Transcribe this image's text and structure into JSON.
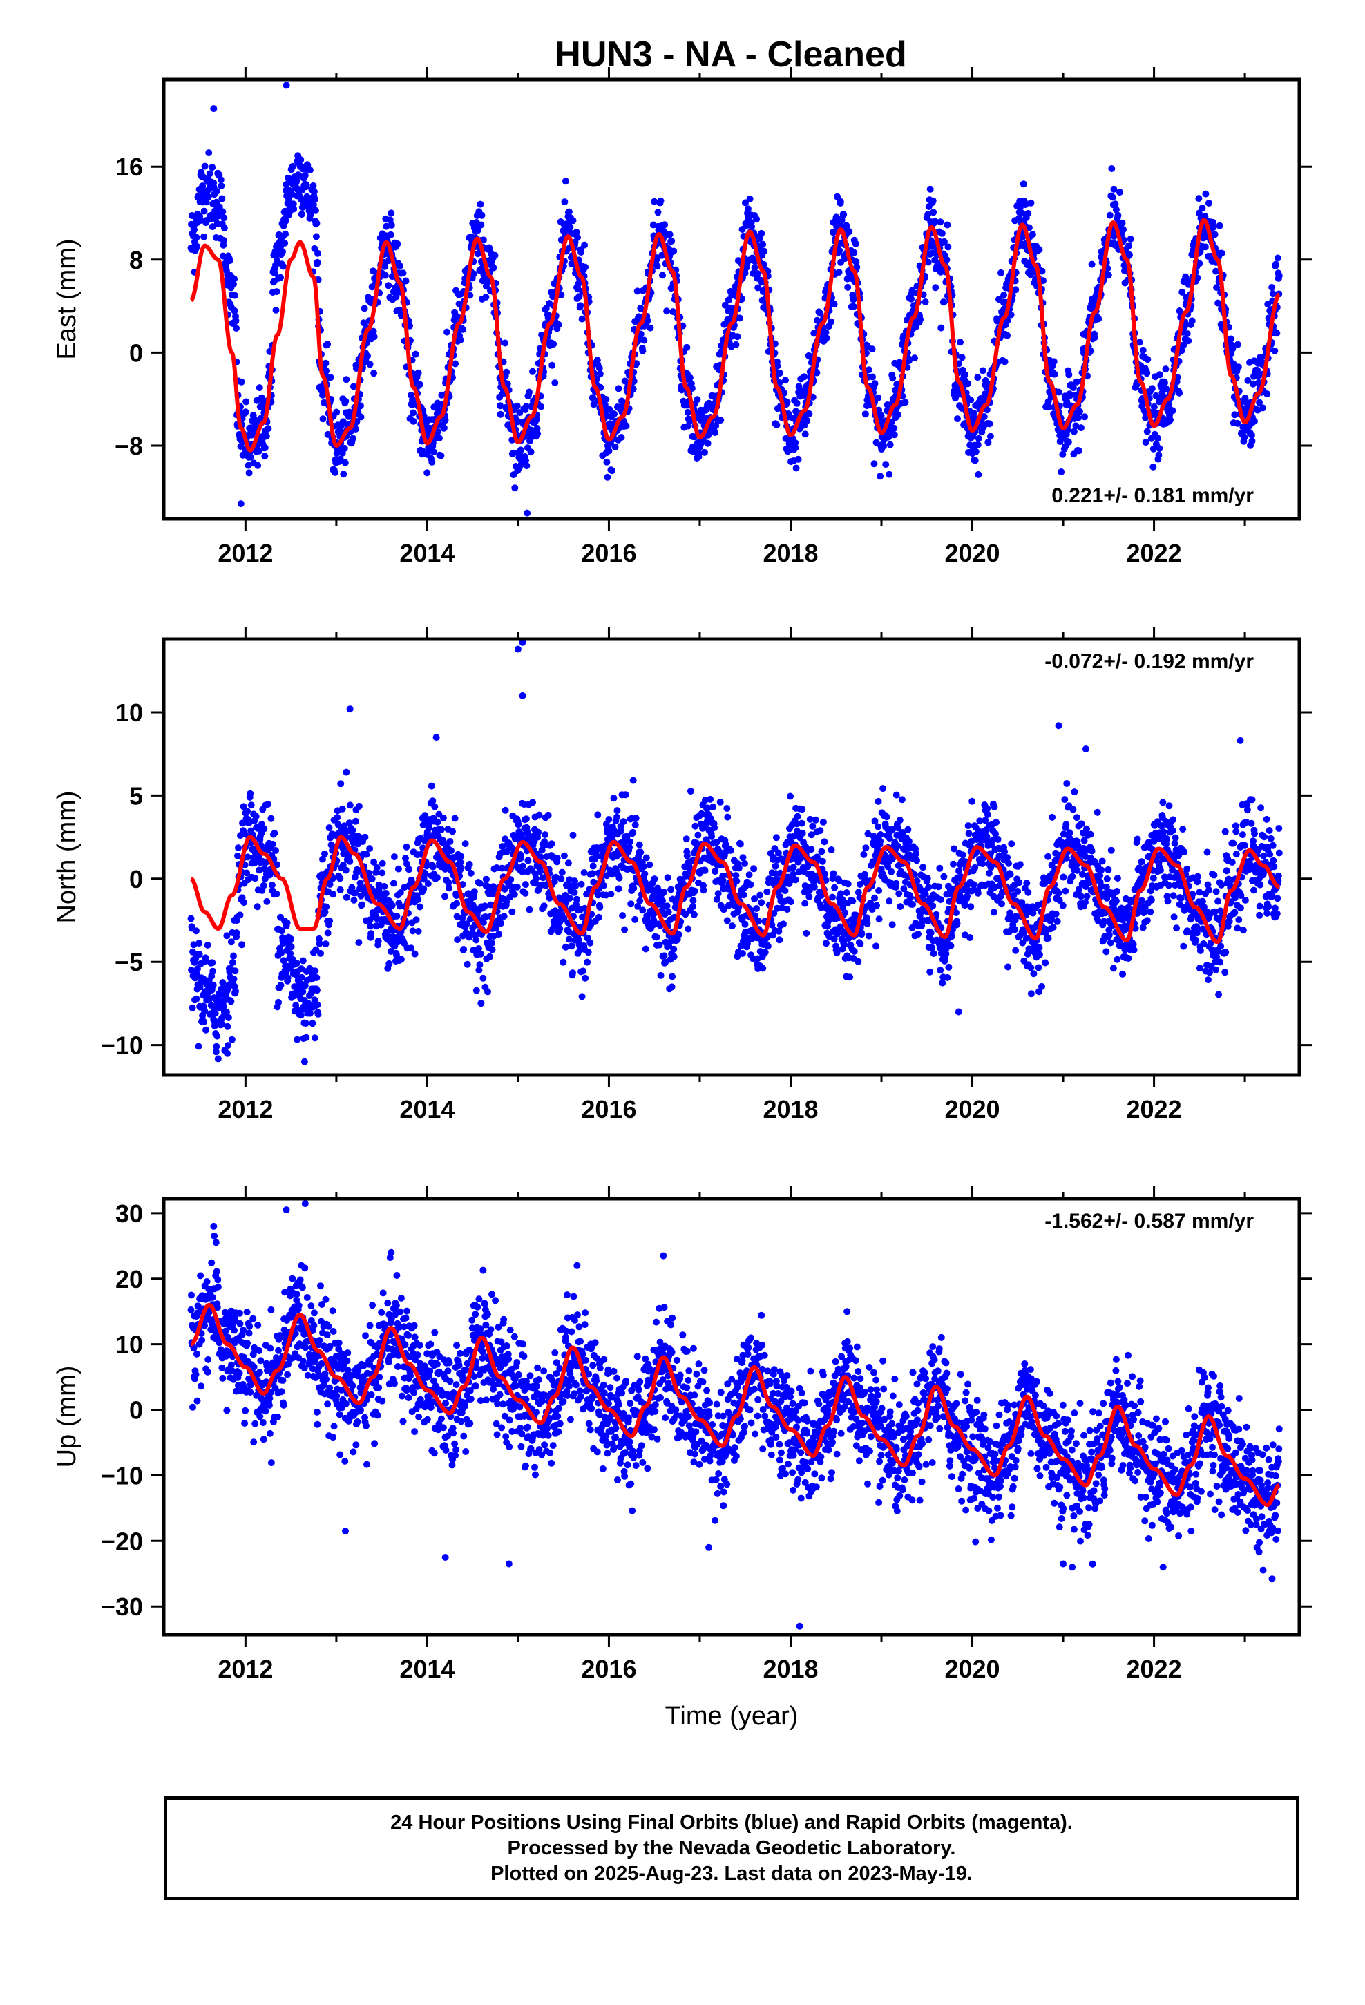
{
  "title": "HUN3  - NA - Cleaned",
  "colors": {
    "points": "#0000ff",
    "fit": "#ff0000",
    "frame": "#000000"
  },
  "footer": {
    "line1": "24 Hour Positions Using Final Orbits (blue) and Rapid Orbits (magenta).",
    "line2": "Processed by the Nevada Geodetic Laboratory.",
    "line3": "Plotted on 2025-Aug-23. Last data on 2023-May-19."
  },
  "chart_data": [
    {
      "type": "scatter",
      "ylabel": "East (mm)",
      "xlabel": "",
      "xlim": [
        2011.1,
        2023.6
      ],
      "ylim": [
        -14.3,
        23.5
      ],
      "xticks": [
        2012,
        2014,
        2016,
        2018,
        2020,
        2022
      ],
      "yticks": [
        -8,
        0,
        8,
        16
      ],
      "ytick_labels": [
        "−8",
        "0",
        "8",
        "16"
      ],
      "rate": "0.221+/- 0.181 mm/yr",
      "rate_position": "bottom-right",
      "grid": false,
      "data_span": [
        2011.4,
        2023.38
      ],
      "fit": [
        [
          2011.4,
          4.5
        ],
        [
          2011.55,
          9.2
        ],
        [
          2011.7,
          8.0
        ],
        [
          2011.85,
          0.0
        ],
        [
          2011.95,
          -6.5
        ],
        [
          2012.05,
          -8.4
        ],
        [
          2012.2,
          -6.0
        ],
        [
          2012.35,
          1.5
        ],
        [
          2012.5,
          8.0
        ],
        [
          2012.6,
          9.5
        ],
        [
          2012.75,
          6.5
        ],
        [
          2012.85,
          -2.0
        ],
        [
          2013.0,
          -8.0
        ],
        [
          2013.15,
          -6.5
        ],
        [
          2013.35,
          2.0
        ],
        [
          2013.55,
          9.5
        ],
        [
          2013.7,
          6.0
        ],
        [
          2013.85,
          -3.0
        ],
        [
          2014.0,
          -7.8
        ],
        [
          2014.15,
          -5.5
        ],
        [
          2014.35,
          2.5
        ],
        [
          2014.55,
          9.8
        ],
        [
          2014.7,
          6.5
        ],
        [
          2014.85,
          -3.0
        ],
        [
          2015.0,
          -7.7
        ],
        [
          2015.15,
          -5.5
        ],
        [
          2015.35,
          2.5
        ],
        [
          2015.55,
          10.0
        ],
        [
          2015.7,
          6.5
        ],
        [
          2015.85,
          -3.0
        ],
        [
          2016.0,
          -7.5
        ],
        [
          2016.15,
          -5.5
        ],
        [
          2016.35,
          2.5
        ],
        [
          2016.55,
          10.2
        ],
        [
          2016.7,
          7.0
        ],
        [
          2016.85,
          -3.0
        ],
        [
          2017.0,
          -7.3
        ],
        [
          2017.15,
          -5.5
        ],
        [
          2017.35,
          2.5
        ],
        [
          2017.55,
          10.4
        ],
        [
          2017.7,
          7.0
        ],
        [
          2017.85,
          -3.0
        ],
        [
          2018.0,
          -7.1
        ],
        [
          2018.15,
          -5.0
        ],
        [
          2018.35,
          2.5
        ],
        [
          2018.55,
          10.6
        ],
        [
          2018.7,
          7.0
        ],
        [
          2018.85,
          -3.0
        ],
        [
          2019.0,
          -6.9
        ],
        [
          2019.15,
          -4.5
        ],
        [
          2019.35,
          3.0
        ],
        [
          2019.55,
          10.8
        ],
        [
          2019.7,
          7.5
        ],
        [
          2019.85,
          -2.5
        ],
        [
          2020.0,
          -6.7
        ],
        [
          2020.15,
          -4.5
        ],
        [
          2020.35,
          3.0
        ],
        [
          2020.55,
          11.0
        ],
        [
          2020.7,
          7.5
        ],
        [
          2020.85,
          -2.5
        ],
        [
          2021.0,
          -6.5
        ],
        [
          2021.15,
          -4.5
        ],
        [
          2021.35,
          3.5
        ],
        [
          2021.55,
          11.2
        ],
        [
          2021.7,
          8.0
        ],
        [
          2021.85,
          -2.5
        ],
        [
          2022.0,
          -6.3
        ],
        [
          2022.15,
          -4.0
        ],
        [
          2022.35,
          3.5
        ],
        [
          2022.55,
          11.4
        ],
        [
          2022.7,
          8.0
        ],
        [
          2022.85,
          -2.0
        ],
        [
          2023.0,
          -6.0
        ],
        [
          2023.15,
          -3.5
        ],
        [
          2023.38,
          5.0
        ]
      ],
      "outliers": [
        [
          2012.45,
          23.0
        ],
        [
          2011.65,
          21.0
        ],
        [
          2011.95,
          -13.0
        ],
        [
          2015.1,
          -13.8
        ],
        [
          2014.95,
          -10.5
        ],
        [
          2016.5,
          13.0
        ],
        [
          2018.55,
          13.0
        ]
      ]
    },
    {
      "type": "scatter",
      "ylabel": "North (mm)",
      "xlabel": "",
      "xlim": [
        2011.1,
        2023.6
      ],
      "ylim": [
        -11.8,
        14.4
      ],
      "xticks": [
        2012,
        2014,
        2016,
        2018,
        2020,
        2022
      ],
      "yticks": [
        -10,
        -5,
        0,
        5,
        10
      ],
      "ytick_labels": [
        "−10",
        "−5",
        "0",
        "5",
        "10"
      ],
      "rate": "-0.072+/- 0.192 mm/yr",
      "rate_position": "top-right",
      "grid": false,
      "data_span": [
        2011.4,
        2023.38
      ],
      "fit": [
        [
          2011.4,
          0.0
        ],
        [
          2011.55,
          -2.0
        ],
        [
          2011.7,
          -3.0
        ],
        [
          2011.85,
          -1.0
        ],
        [
          2012.05,
          2.5
        ],
        [
          2012.2,
          1.5
        ],
        [
          2012.4,
          0.0
        ],
        [
          2012.6,
          -3.0
        ],
        [
          2012.75,
          -3.0
        ],
        [
          2012.9,
          0.0
        ],
        [
          2013.05,
          2.5
        ],
        [
          2013.2,
          1.5
        ],
        [
          2013.45,
          -1.5
        ],
        [
          2013.7,
          -3.0
        ],
        [
          2013.85,
          -0.5
        ],
        [
          2014.05,
          2.3
        ],
        [
          2014.25,
          1.0
        ],
        [
          2014.45,
          -2.0
        ],
        [
          2014.65,
          -3.2
        ],
        [
          2014.85,
          0.0
        ],
        [
          2015.05,
          2.2
        ],
        [
          2015.25,
          1.0
        ],
        [
          2015.45,
          -1.5
        ],
        [
          2015.7,
          -3.3
        ],
        [
          2015.85,
          -0.5
        ],
        [
          2016.05,
          2.2
        ],
        [
          2016.25,
          1.0
        ],
        [
          2016.45,
          -1.5
        ],
        [
          2016.7,
          -3.3
        ],
        [
          2016.85,
          -0.5
        ],
        [
          2017.05,
          2.1
        ],
        [
          2017.25,
          1.0
        ],
        [
          2017.45,
          -1.5
        ],
        [
          2017.7,
          -3.4
        ],
        [
          2017.85,
          -0.5
        ],
        [
          2018.05,
          2.0
        ],
        [
          2018.25,
          1.0
        ],
        [
          2018.45,
          -1.5
        ],
        [
          2018.7,
          -3.4
        ],
        [
          2018.85,
          -0.5
        ],
        [
          2019.05,
          1.9
        ],
        [
          2019.25,
          1.0
        ],
        [
          2019.45,
          -1.5
        ],
        [
          2019.7,
          -3.5
        ],
        [
          2019.85,
          -0.5
        ],
        [
          2020.05,
          1.9
        ],
        [
          2020.25,
          1.0
        ],
        [
          2020.45,
          -1.5
        ],
        [
          2020.7,
          -3.6
        ],
        [
          2020.85,
          -0.5
        ],
        [
          2021.05,
          1.8
        ],
        [
          2021.25,
          0.8
        ],
        [
          2021.45,
          -1.7
        ],
        [
          2021.7,
          -3.7
        ],
        [
          2021.85,
          -0.7
        ],
        [
          2022.05,
          1.8
        ],
        [
          2022.25,
          0.8
        ],
        [
          2022.45,
          -1.7
        ],
        [
          2022.7,
          -3.8
        ],
        [
          2022.85,
          -0.7
        ],
        [
          2023.05,
          1.7
        ],
        [
          2023.2,
          0.8
        ],
        [
          2023.38,
          -0.5
        ]
      ],
      "outliers": [
        [
          2015.05,
          14.2
        ],
        [
          2015.0,
          13.8
        ],
        [
          2015.05,
          11.0
        ],
        [
          2013.15,
          10.2
        ],
        [
          2014.1,
          8.5
        ],
        [
          2020.95,
          9.2
        ],
        [
          2022.95,
          8.3
        ],
        [
          2012.65,
          -11.0
        ],
        [
          2011.8,
          -10.5
        ],
        [
          2019.85,
          -8.0
        ],
        [
          2021.25,
          7.8
        ]
      ]
    },
    {
      "type": "scatter",
      "ylabel": "Up (mm)",
      "xlabel": "Time (year)",
      "xlim": [
        2011.1,
        2023.6
      ],
      "ylim": [
        -34.3,
        32.2
      ],
      "xticks": [
        2012,
        2014,
        2016,
        2018,
        2020,
        2022
      ],
      "yticks": [
        -30,
        -20,
        -10,
        0,
        10,
        20,
        30
      ],
      "ytick_labels": [
        "−30",
        "−20",
        "−10",
        "0",
        "10",
        "20",
        "30"
      ],
      "rate": "-1.562+/- 0.587 mm/yr",
      "rate_position": "top-right",
      "grid": false,
      "data_span": [
        2011.4,
        2023.38
      ],
      "fit": [
        [
          2011.4,
          10.0
        ],
        [
          2011.6,
          16.0
        ],
        [
          2011.8,
          10.0
        ],
        [
          2012.0,
          6.5
        ],
        [
          2012.2,
          2.5
        ],
        [
          2012.35,
          6.0
        ],
        [
          2012.6,
          14.5
        ],
        [
          2012.8,
          9.0
        ],
        [
          2013.0,
          5.0
        ],
        [
          2013.25,
          1.0
        ],
        [
          2013.4,
          5.0
        ],
        [
          2013.6,
          12.5
        ],
        [
          2013.8,
          7.0
        ],
        [
          2014.0,
          3.0
        ],
        [
          2014.25,
          -0.5
        ],
        [
          2014.4,
          3.5
        ],
        [
          2014.6,
          11.0
        ],
        [
          2014.8,
          5.0
        ],
        [
          2015.0,
          1.5
        ],
        [
          2015.25,
          -2.0
        ],
        [
          2015.4,
          2.0
        ],
        [
          2015.6,
          9.5
        ],
        [
          2015.8,
          3.5
        ],
        [
          2016.0,
          0.0
        ],
        [
          2016.25,
          -4.0
        ],
        [
          2016.4,
          0.5
        ],
        [
          2016.6,
          8.0
        ],
        [
          2016.8,
          2.0
        ],
        [
          2017.0,
          -1.5
        ],
        [
          2017.25,
          -5.5
        ],
        [
          2017.4,
          -1.0
        ],
        [
          2017.6,
          6.5
        ],
        [
          2017.8,
          0.5
        ],
        [
          2018.0,
          -3.0
        ],
        [
          2018.25,
          -7.0
        ],
        [
          2018.4,
          -2.5
        ],
        [
          2018.6,
          5.0
        ],
        [
          2018.8,
          -1.0
        ],
        [
          2019.0,
          -4.5
        ],
        [
          2019.25,
          -8.5
        ],
        [
          2019.4,
          -4.0
        ],
        [
          2019.6,
          3.5
        ],
        [
          2019.8,
          -2.5
        ],
        [
          2020.0,
          -6.0
        ],
        [
          2020.25,
          -10.0
        ],
        [
          2020.4,
          -5.5
        ],
        [
          2020.6,
          2.0
        ],
        [
          2020.8,
          -4.0
        ],
        [
          2021.0,
          -7.5
        ],
        [
          2021.25,
          -11.5
        ],
        [
          2021.4,
          -7.0
        ],
        [
          2021.6,
          0.5
        ],
        [
          2021.8,
          -5.5
        ],
        [
          2022.0,
          -9.0
        ],
        [
          2022.25,
          -13.0
        ],
        [
          2022.4,
          -8.5
        ],
        [
          2022.6,
          -1.0
        ],
        [
          2022.8,
          -7.0
        ],
        [
          2023.0,
          -10.5
        ],
        [
          2023.25,
          -14.5
        ],
        [
          2023.38,
          -11.5
        ]
      ],
      "outliers": [
        [
          2012.45,
          30.5
        ],
        [
          2011.65,
          28.0
        ],
        [
          2018.1,
          -33.0
        ],
        [
          2014.2,
          -22.5
        ],
        [
          2014.9,
          -23.5
        ],
        [
          2013.1,
          -18.5
        ],
        [
          2017.1,
          -21.0
        ],
        [
          2021.0,
          -23.5
        ],
        [
          2021.1,
          -24.0
        ],
        [
          2022.1,
          -24.0
        ],
        [
          2023.3,
          -25.8
        ],
        [
          2016.6,
          23.5
        ],
        [
          2015.65,
          22.0
        ]
      ]
    }
  ]
}
